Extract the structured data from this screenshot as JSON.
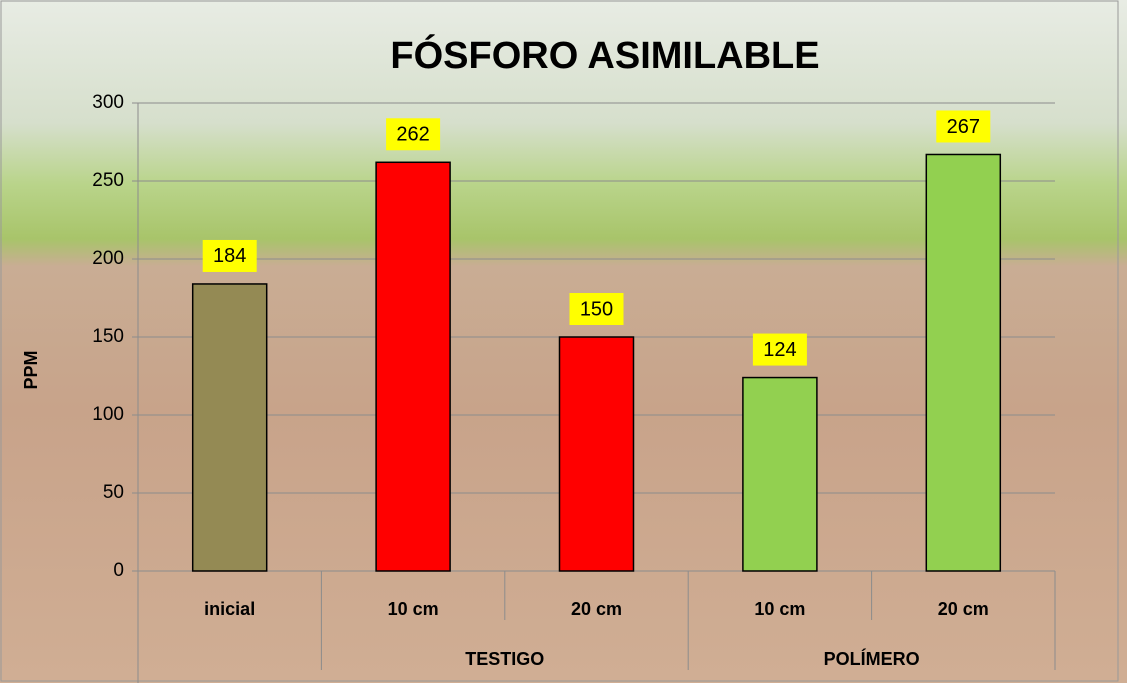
{
  "chart_data": {
    "type": "bar",
    "title": "FÓSFORO ASIMILABLE",
    "y_label": "PPM",
    "categories": [
      "inicial",
      "10 cm",
      "20 cm",
      "10 cm",
      "20 cm"
    ],
    "group_categories": [
      null,
      "TESTIGO",
      "TESTIGO",
      "POLÍMERO",
      "POLÍMERO"
    ],
    "values": [
      184,
      262,
      150,
      124,
      267
    ],
    "colors": [
      "#948a54",
      "#ff0000",
      "#ff0000",
      "#92d050",
      "#92d050"
    ],
    "label_background": "#ffff00",
    "ylim": [
      0,
      300
    ],
    "yticks": [
      0,
      50,
      100,
      150,
      200,
      250,
      300
    ],
    "grid": true
  }
}
